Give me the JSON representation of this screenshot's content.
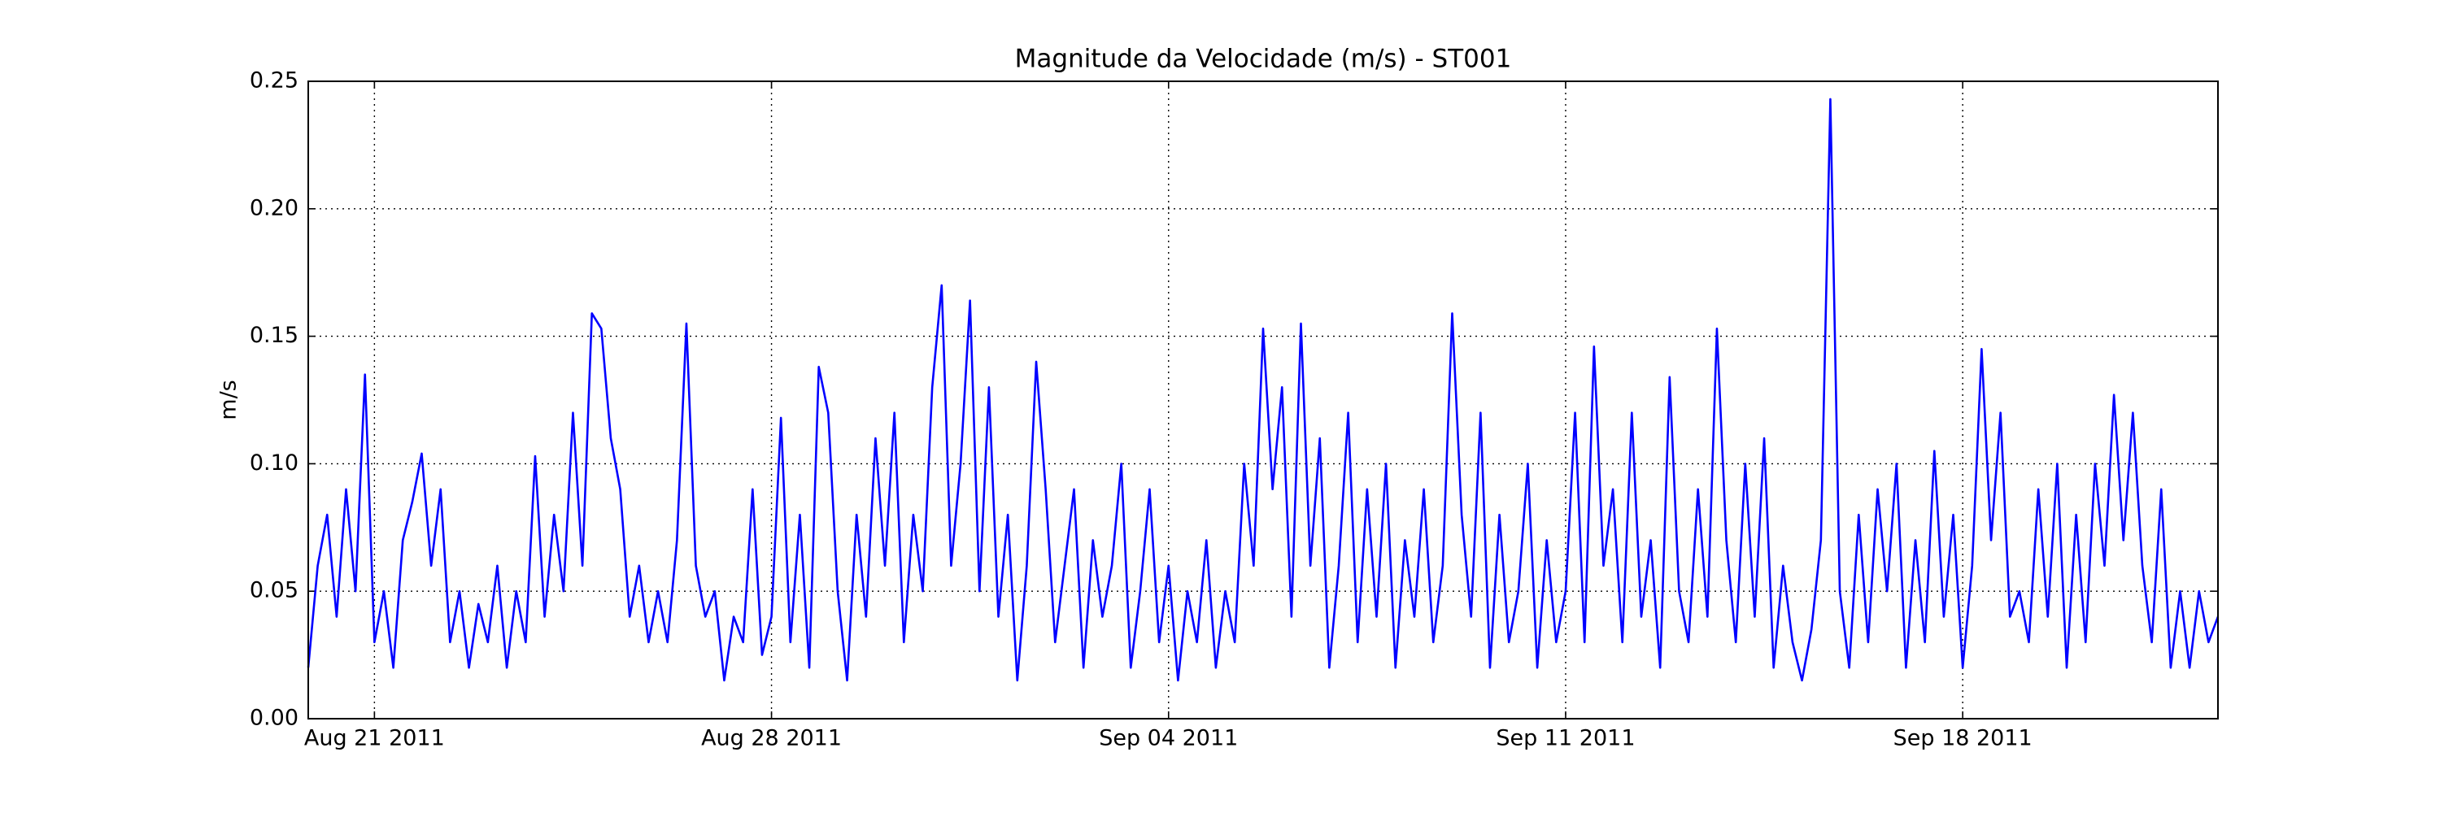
{
  "chart_data": {
    "type": "line",
    "title": "Magnitude da Velocidade (m/s) - ST001",
    "ylabel": "m/s",
    "xlim": [
      "2011-08-19 20:00",
      "2011-09-22 12:00"
    ],
    "xticks": [
      {
        "value": "2011-08-21",
        "label": "Aug 21 2011"
      },
      {
        "value": "2011-08-28",
        "label": "Aug 28 2011"
      },
      {
        "value": "2011-09-04",
        "label": "Sep 04 2011"
      },
      {
        "value": "2011-09-11",
        "label": "Sep 11 2011"
      },
      {
        "value": "2011-09-18",
        "label": "Sep 18 2011"
      }
    ],
    "ylim": [
      0,
      0.25
    ],
    "yticks": [
      {
        "value": 0,
        "label": "0.00"
      },
      {
        "value": 0.05,
        "label": "0.05"
      },
      {
        "value": 0.1,
        "label": "0.10"
      },
      {
        "value": 0.15,
        "label": "0.15"
      },
      {
        "value": 0.2,
        "label": "0.20"
      },
      {
        "value": 0.25,
        "label": "0.25"
      }
    ],
    "grid": true,
    "x": [
      "2011-08-19 20:00",
      "2011-08-20 00:00",
      "2011-08-20 04:00",
      "2011-08-20 08:00",
      "2011-08-20 12:00",
      "2011-08-20 16:00",
      "2011-08-20 20:00",
      "2011-08-21 00:00",
      "2011-08-21 04:00",
      "2011-08-21 08:00",
      "2011-08-21 12:00",
      "2011-08-21 16:00",
      "2011-08-21 20:00",
      "2011-08-22 00:00",
      "2011-08-22 04:00",
      "2011-08-22 08:00",
      "2011-08-22 12:00",
      "2011-08-22 16:00",
      "2011-08-22 20:00",
      "2011-08-23 00:00",
      "2011-08-23 04:00",
      "2011-08-23 08:00",
      "2011-08-23 12:00",
      "2011-08-23 16:00",
      "2011-08-23 20:00",
      "2011-08-24 00:00",
      "2011-08-24 04:00",
      "2011-08-24 08:00",
      "2011-08-24 12:00",
      "2011-08-24 16:00",
      "2011-08-24 20:00",
      "2011-08-25 00:00",
      "2011-08-25 04:00",
      "2011-08-25 08:00",
      "2011-08-25 12:00",
      "2011-08-25 16:00",
      "2011-08-25 20:00",
      "2011-08-26 00:00",
      "2011-08-26 04:00",
      "2011-08-26 08:00",
      "2011-08-26 12:00",
      "2011-08-26 16:00",
      "2011-08-26 20:00",
      "2011-08-27 00:00",
      "2011-08-27 04:00",
      "2011-08-27 08:00",
      "2011-08-27 12:00",
      "2011-08-27 16:00",
      "2011-08-27 20:00",
      "2011-08-28 00:00",
      "2011-08-28 04:00",
      "2011-08-28 08:00",
      "2011-08-28 12:00",
      "2011-08-28 16:00",
      "2011-08-28 20:00",
      "2011-08-29 00:00",
      "2011-08-29 04:00",
      "2011-08-29 08:00",
      "2011-08-29 12:00",
      "2011-08-29 16:00",
      "2011-08-29 20:00",
      "2011-08-30 00:00",
      "2011-08-30 04:00",
      "2011-08-30 08:00",
      "2011-08-30 12:00",
      "2011-08-30 16:00",
      "2011-08-30 20:00",
      "2011-08-31 00:00",
      "2011-08-31 04:00",
      "2011-08-31 08:00",
      "2011-08-31 12:00",
      "2011-08-31 16:00",
      "2011-08-31 20:00",
      "2011-09-01 00:00",
      "2011-09-01 04:00",
      "2011-09-01 08:00",
      "2011-09-01 12:00",
      "2011-09-01 16:00",
      "2011-09-01 20:00",
      "2011-09-02 00:00",
      "2011-09-02 04:00",
      "2011-09-02 08:00",
      "2011-09-02 12:00",
      "2011-09-02 16:00",
      "2011-09-02 20:00",
      "2011-09-03 00:00",
      "2011-09-03 04:00",
      "2011-09-03 08:00",
      "2011-09-03 12:00",
      "2011-09-03 16:00",
      "2011-09-03 20:00",
      "2011-09-04 00:00",
      "2011-09-04 04:00",
      "2011-09-04 08:00",
      "2011-09-04 12:00",
      "2011-09-04 16:00",
      "2011-09-04 20:00",
      "2011-09-05 00:00",
      "2011-09-05 04:00",
      "2011-09-05 08:00",
      "2011-09-05 12:00",
      "2011-09-05 16:00",
      "2011-09-05 20:00",
      "2011-09-06 00:00",
      "2011-09-06 04:00",
      "2011-09-06 08:00",
      "2011-09-06 12:00",
      "2011-09-06 16:00",
      "2011-09-06 20:00",
      "2011-09-07 00:00",
      "2011-09-07 04:00",
      "2011-09-07 08:00",
      "2011-09-07 12:00",
      "2011-09-07 16:00",
      "2011-09-07 20:00",
      "2011-09-08 00:00",
      "2011-09-08 04:00",
      "2011-09-08 08:00",
      "2011-09-08 12:00",
      "2011-09-08 16:00",
      "2011-09-08 20:00",
      "2011-09-09 00:00",
      "2011-09-09 04:00",
      "2011-09-09 08:00",
      "2011-09-09 12:00",
      "2011-09-09 16:00",
      "2011-09-09 20:00",
      "2011-09-10 00:00",
      "2011-09-10 04:00",
      "2011-09-10 08:00",
      "2011-09-10 12:00",
      "2011-09-10 16:00",
      "2011-09-10 20:00",
      "2011-09-11 00:00",
      "2011-09-11 04:00",
      "2011-09-11 08:00",
      "2011-09-11 12:00",
      "2011-09-11 16:00",
      "2011-09-11 20:00",
      "2011-09-12 00:00",
      "2011-09-12 04:00",
      "2011-09-12 08:00",
      "2011-09-12 12:00",
      "2011-09-12 16:00",
      "2011-09-12 20:00",
      "2011-09-13 00:00",
      "2011-09-13 04:00",
      "2011-09-13 08:00",
      "2011-09-13 12:00",
      "2011-09-13 16:00",
      "2011-09-13 20:00",
      "2011-09-14 00:00",
      "2011-09-14 04:00",
      "2011-09-14 08:00",
      "2011-09-14 12:00",
      "2011-09-14 16:00",
      "2011-09-14 20:00",
      "2011-09-15 00:00",
      "2011-09-15 04:00",
      "2011-09-15 08:00",
      "2011-09-15 12:00",
      "2011-09-15 16:00",
      "2011-09-15 20:00",
      "2011-09-16 00:00",
      "2011-09-16 04:00",
      "2011-09-16 08:00",
      "2011-09-16 12:00",
      "2011-09-16 16:00",
      "2011-09-16 20:00",
      "2011-09-17 00:00",
      "2011-09-17 04:00",
      "2011-09-17 08:00",
      "2011-09-17 12:00",
      "2011-09-17 16:00",
      "2011-09-17 20:00",
      "2011-09-18 00:00",
      "2011-09-18 04:00",
      "2011-09-18 08:00",
      "2011-09-18 12:00",
      "2011-09-18 16:00",
      "2011-09-18 20:00",
      "2011-09-19 00:00",
      "2011-09-19 04:00",
      "2011-09-19 08:00",
      "2011-09-19 12:00",
      "2011-09-19 16:00",
      "2011-09-19 20:00",
      "2011-09-20 00:00",
      "2011-09-20 04:00",
      "2011-09-20 08:00",
      "2011-09-20 12:00",
      "2011-09-20 16:00",
      "2011-09-20 20:00",
      "2011-09-21 00:00",
      "2011-09-21 04:00",
      "2011-09-21 08:00",
      "2011-09-21 12:00",
      "2011-09-21 16:00",
      "2011-09-21 20:00",
      "2011-09-22 00:00",
      "2011-09-22 04:00",
      "2011-09-22 08:00",
      "2011-09-22 12:00"
    ],
    "series": [
      {
        "name": "ST001",
        "color": "#0000ff",
        "values": [
          0.02,
          0.06,
          0.08,
          0.04,
          0.09,
          0.05,
          0.135,
          0.03,
          0.05,
          0.02,
          0.07,
          0.085,
          0.104,
          0.06,
          0.09,
          0.03,
          0.05,
          0.02,
          0.045,
          0.03,
          0.06,
          0.02,
          0.05,
          0.03,
          0.103,
          0.04,
          0.08,
          0.05,
          0.12,
          0.06,
          0.159,
          0.153,
          0.11,
          0.09,
          0.04,
          0.06,
          0.03,
          0.05,
          0.03,
          0.07,
          0.155,
          0.06,
          0.04,
          0.05,
          0.015,
          0.04,
          0.03,
          0.09,
          0.025,
          0.04,
          0.118,
          0.03,
          0.08,
          0.02,
          0.138,
          0.12,
          0.05,
          0.015,
          0.08,
          0.04,
          0.11,
          0.06,
          0.12,
          0.03,
          0.08,
          0.05,
          0.13,
          0.17,
          0.06,
          0.1,
          0.164,
          0.05,
          0.13,
          0.04,
          0.08,
          0.015,
          0.06,
          0.14,
          0.09,
          0.03,
          0.06,
          0.09,
          0.02,
          0.07,
          0.04,
          0.06,
          0.1,
          0.02,
          0.05,
          0.09,
          0.03,
          0.06,
          0.015,
          0.05,
          0.03,
          0.07,
          0.02,
          0.05,
          0.03,
          0.1,
          0.06,
          0.153,
          0.09,
          0.13,
          0.04,
          0.155,
          0.06,
          0.11,
          0.02,
          0.06,
          0.12,
          0.03,
          0.09,
          0.04,
          0.1,
          0.02,
          0.07,
          0.04,
          0.09,
          0.03,
          0.06,
          0.159,
          0.08,
          0.04,
          0.12,
          0.02,
          0.08,
          0.03,
          0.05,
          0.1,
          0.02,
          0.07,
          0.03,
          0.05,
          0.12,
          0.03,
          0.146,
          0.06,
          0.09,
          0.03,
          0.12,
          0.04,
          0.07,
          0.02,
          0.134,
          0.05,
          0.03,
          0.09,
          0.04,
          0.153,
          0.07,
          0.03,
          0.1,
          0.04,
          0.11,
          0.02,
          0.06,
          0.03,
          0.015,
          0.035,
          0.07,
          0.243,
          0.05,
          0.02,
          0.08,
          0.03,
          0.09,
          0.05,
          0.1,
          0.02,
          0.07,
          0.03,
          0.105,
          0.04,
          0.08,
          0.02,
          0.06,
          0.145,
          0.07,
          0.12,
          0.04,
          0.05,
          0.03,
          0.09,
          0.04,
          0.1,
          0.02,
          0.08,
          0.03,
          0.1,
          0.06,
          0.127,
          0.07,
          0.12,
          0.06,
          0.03,
          0.09,
          0.02,
          0.05,
          0.02,
          0.05,
          0.03,
          0.04
        ]
      }
    ]
  }
}
